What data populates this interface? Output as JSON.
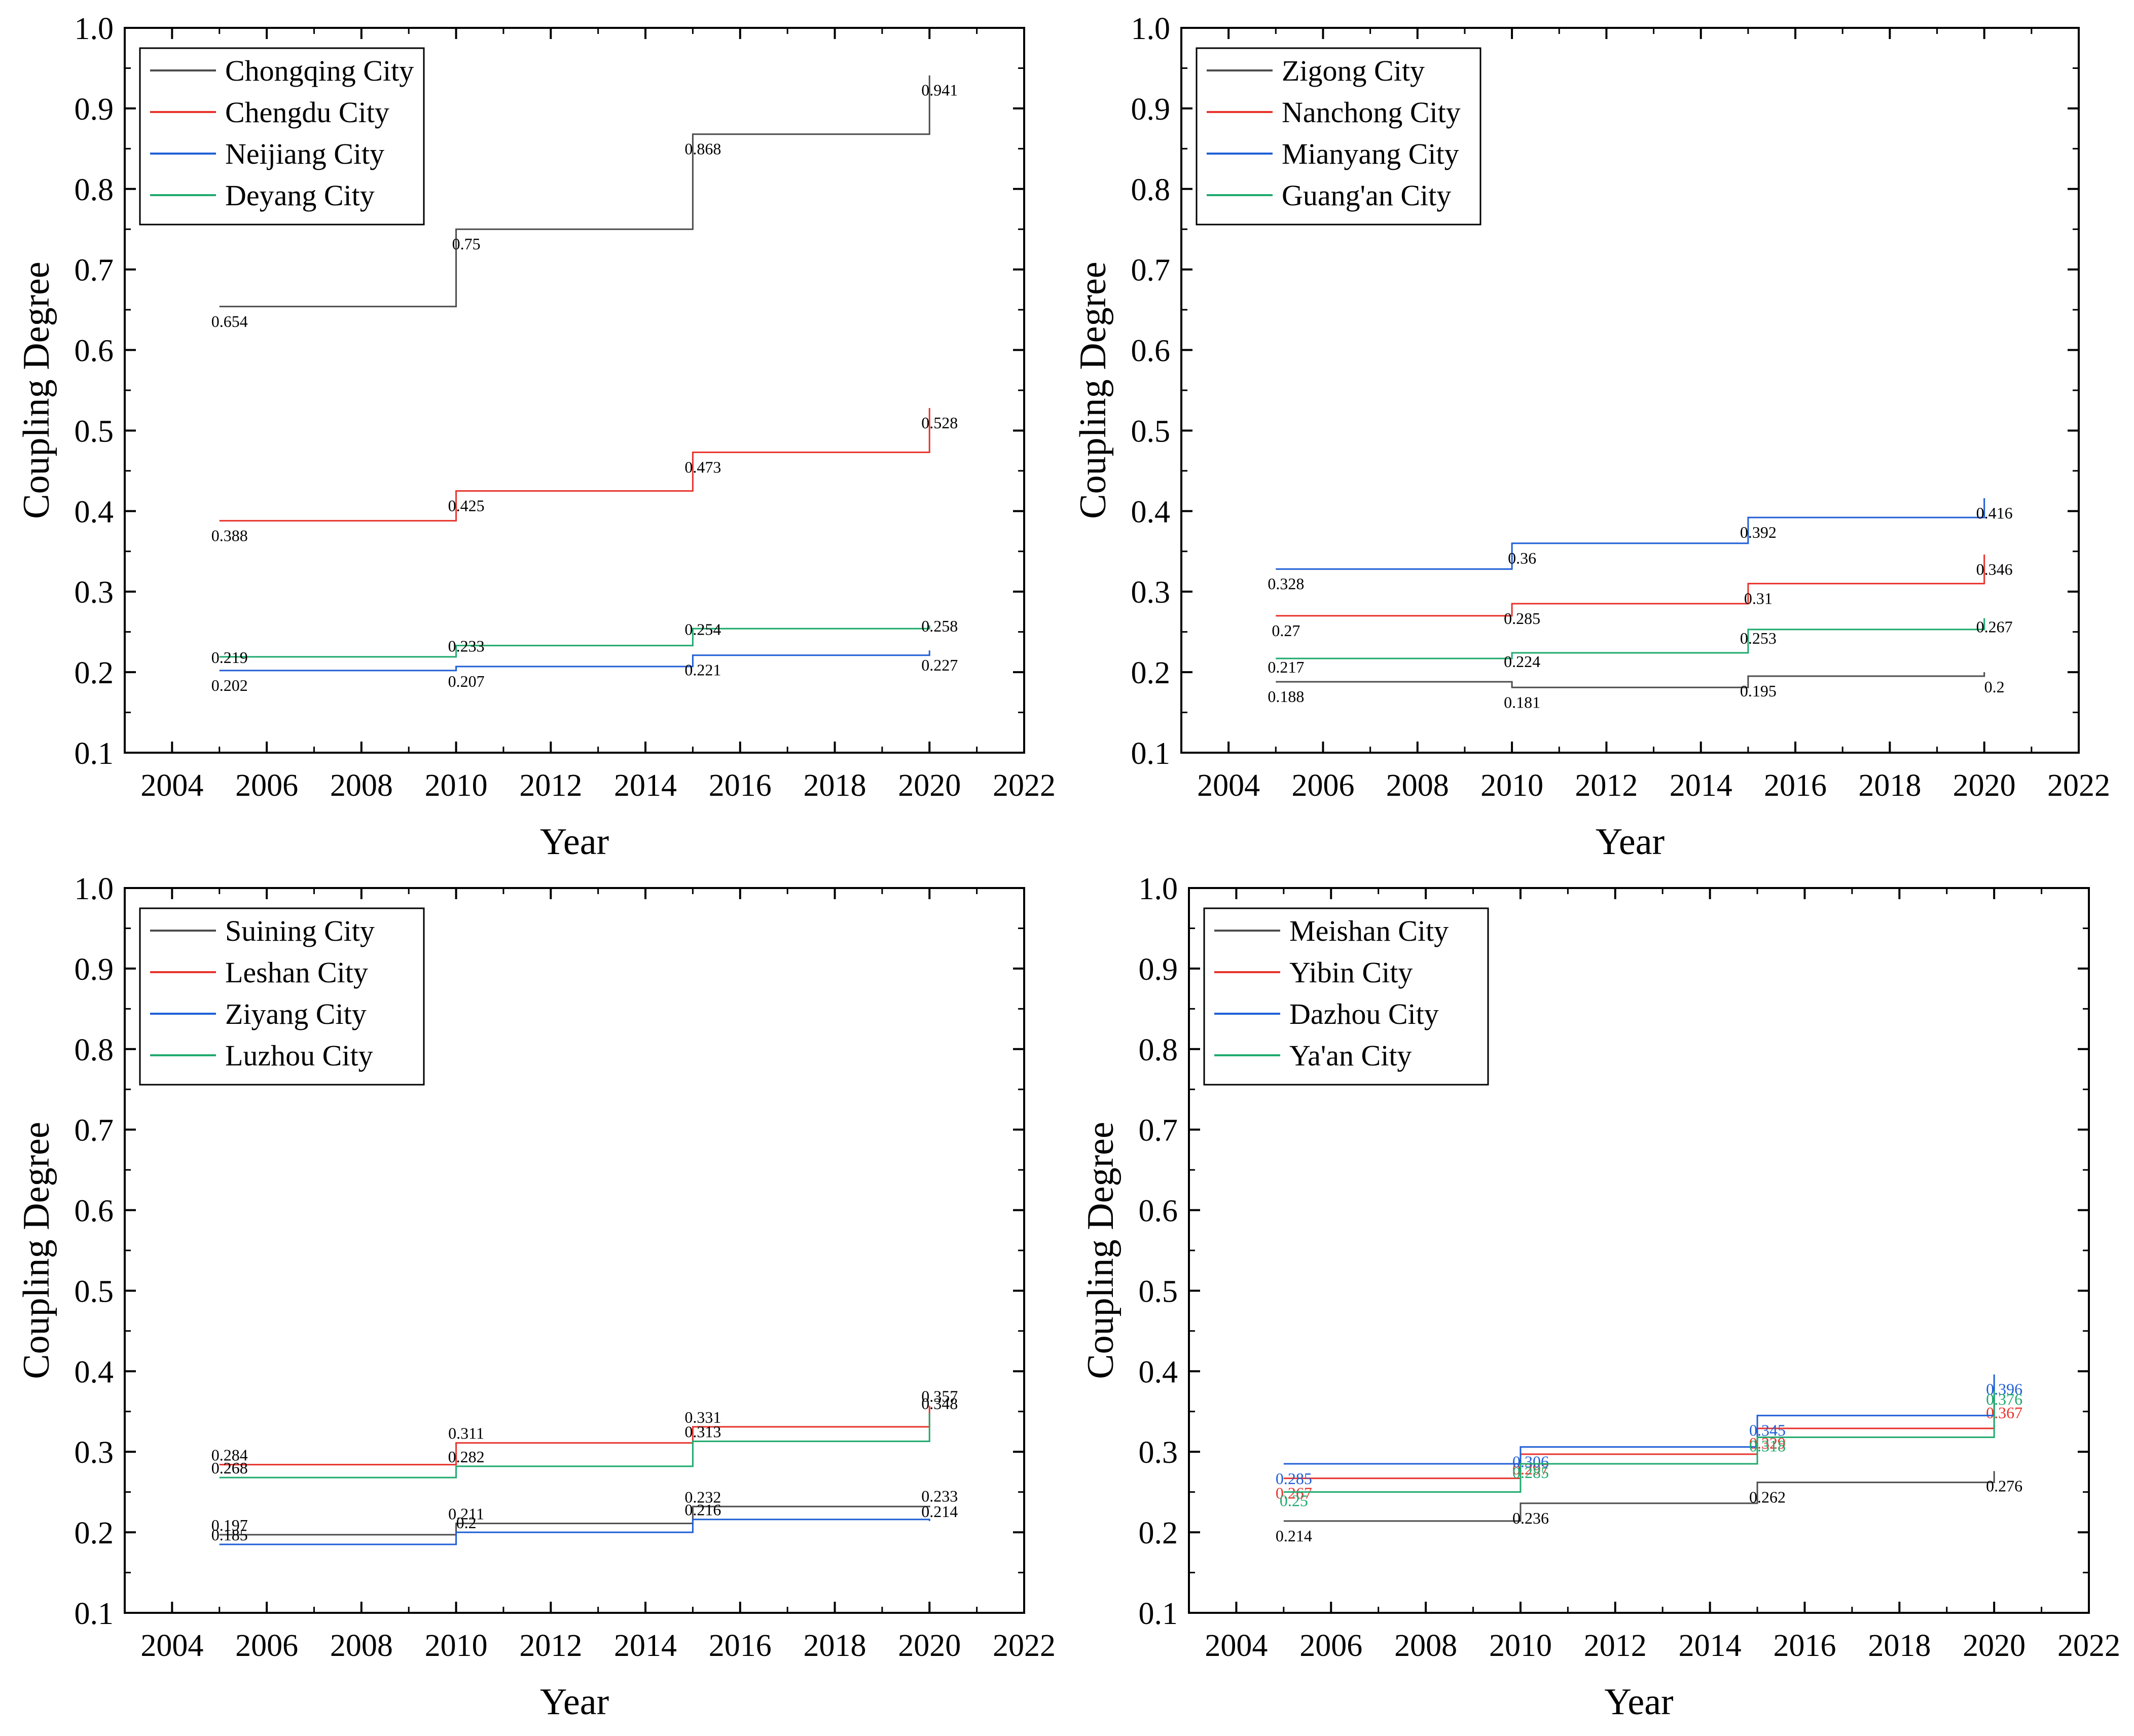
{
  "colors": {
    "black": "#4d4d4d",
    "red": "#e8332c",
    "blue": "#1f5fd6",
    "green": "#1faa6e",
    "frame": "#000000"
  },
  "chart_data": [
    {
      "type": "line",
      "step": "after",
      "xlabel": "Year",
      "ylabel": "Coupling Degree",
      "xlim": [
        2003,
        2022
      ],
      "ylim": [
        0.1,
        1.0
      ],
      "xticks": [
        "2004",
        "2006",
        "2008",
        "2010",
        "2012",
        "2014",
        "2016",
        "2018",
        "2020",
        "2022"
      ],
      "yticks": [
        "0.1",
        "0.2",
        "0.3",
        "0.4",
        "0.5",
        "0.6",
        "0.7",
        "0.8",
        "0.9",
        "1.0"
      ],
      "legend_position": "top-left",
      "x": [
        2005,
        2010,
        2015,
        2020
      ],
      "series": [
        {
          "name": "Chongqing City",
          "color": "black",
          "values": [
            0.654,
            0.75,
            0.868,
            0.941
          ],
          "labels": [
            "0.654",
            "0.75",
            "0.868",
            "0.941"
          ]
        },
        {
          "name": "Chengdu City",
          "color": "red",
          "values": [
            0.388,
            0.425,
            0.473,
            0.528
          ],
          "labels": [
            "0.388",
            "0.425",
            "0.473",
            "0.528"
          ]
        },
        {
          "name": "Neijiang City",
          "color": "blue",
          "values": [
            0.202,
            0.207,
            0.221,
            0.227
          ],
          "labels": [
            "0.202",
            "0.207",
            "0.221",
            "0.227"
          ]
        },
        {
          "name": "Deyang City",
          "color": "green",
          "values": [
            0.219,
            0.233,
            0.254,
            0.258
          ],
          "labels": [
            "0.219",
            "0.233",
            "0.254",
            "0.258"
          ]
        }
      ]
    },
    {
      "type": "line",
      "step": "after",
      "xlabel": "Year",
      "ylabel": "Coupling Degree",
      "xlim": [
        2003,
        2022
      ],
      "ylim": [
        0.1,
        1.0
      ],
      "xticks": [
        "2004",
        "2006",
        "2008",
        "2010",
        "2012",
        "2014",
        "2016",
        "2018",
        "2020",
        "2022"
      ],
      "yticks": [
        "0.1",
        "0.2",
        "0.3",
        "0.4",
        "0.5",
        "0.6",
        "0.7",
        "0.8",
        "0.9",
        "1.0"
      ],
      "legend_position": "top-left",
      "x": [
        2005,
        2010,
        2015,
        2020
      ],
      "series": [
        {
          "name": "Zigong City",
          "color": "black",
          "values": [
            0.188,
            0.181,
            0.195,
            0.2
          ],
          "labels": [
            "0.188",
            "0.181",
            "0.195",
            "0.2"
          ]
        },
        {
          "name": "Nanchong City",
          "color": "red",
          "values": [
            0.27,
            0.285,
            0.31,
            0.346
          ],
          "labels": [
            "0.27",
            "0.285",
            "0.31",
            "0.346"
          ]
        },
        {
          "name": "Mianyang City",
          "color": "blue",
          "values": [
            0.328,
            0.36,
            0.392,
            0.416
          ],
          "labels": [
            "0.328",
            "0.36",
            "0.392",
            "0.416"
          ]
        },
        {
          "name": "Guang'an City",
          "color": "green",
          "values": [
            0.217,
            0.224,
            0.253,
            0.267
          ],
          "labels": [
            "0.217",
            "0.224",
            "0.253",
            "0.267"
          ]
        }
      ]
    },
    {
      "type": "line",
      "step": "after",
      "xlabel": "Year",
      "ylabel": "Coupling Degree",
      "xlim": [
        2003,
        2022
      ],
      "ylim": [
        0.1,
        1.0
      ],
      "xticks": [
        "2004",
        "2006",
        "2008",
        "2010",
        "2012",
        "2014",
        "2016",
        "2018",
        "2020",
        "2022"
      ],
      "yticks": [
        "0.1",
        "0.2",
        "0.3",
        "0.4",
        "0.5",
        "0.6",
        "0.7",
        "0.8",
        "0.9",
        "1.0"
      ],
      "legend_position": "top-left",
      "x": [
        2005,
        2010,
        2015,
        2020
      ],
      "series": [
        {
          "name": "Suining City",
          "color": "black",
          "values": [
            0.197,
            0.211,
            0.232,
            0.233
          ],
          "labels": [
            "0.197",
            "0.211",
            "0.232",
            "0.233"
          ]
        },
        {
          "name": "Leshan City",
          "color": "red",
          "values": [
            0.284,
            0.311,
            0.331,
            0.357
          ],
          "labels": [
            "0.284",
            "0.311",
            "0.331",
            "0.357"
          ]
        },
        {
          "name": "Ziyang City",
          "color": "blue",
          "values": [
            0.185,
            0.2,
            0.216,
            0.214
          ],
          "labels": [
            "0.185",
            "0.2",
            "0.216",
            "0.214"
          ]
        },
        {
          "name": "Luzhou City",
          "color": "green",
          "values": [
            0.268,
            0.282,
            0.313,
            0.348
          ],
          "labels": [
            "0.268",
            "0.282",
            "0.313",
            "0.348"
          ]
        }
      ]
    },
    {
      "type": "line",
      "step": "after",
      "xlabel": "Year",
      "ylabel": "Coupling Degree",
      "xlim": [
        2003,
        2022
      ],
      "ylim": [
        0.1,
        1.0
      ],
      "xticks": [
        "2004",
        "2006",
        "2008",
        "2010",
        "2012",
        "2014",
        "2016",
        "2018",
        "2020",
        "2022"
      ],
      "yticks": [
        "0.1",
        "0.2",
        "0.3",
        "0.4",
        "0.5",
        "0.6",
        "0.7",
        "0.8",
        "0.9",
        "1.0"
      ],
      "legend_position": "top-left",
      "x": [
        2005,
        2010,
        2015,
        2020
      ],
      "series": [
        {
          "name": "Meishan City",
          "color": "black",
          "values": [
            0.214,
            0.236,
            0.262,
            0.276
          ],
          "labels": [
            "0.214",
            "0.236",
            "0.262",
            "0.276"
          ]
        },
        {
          "name": "Yibin City",
          "color": "red",
          "values": [
            0.267,
            0.297,
            0.329,
            0.367
          ],
          "labels": [
            "0.267",
            "0.297",
            "0.329",
            "0.367"
          ]
        },
        {
          "name": "Dazhou City",
          "color": "blue",
          "values": [
            0.285,
            0.306,
            0.345,
            0.396
          ],
          "labels": [
            "0.285",
            "0.306",
            "0.345",
            "0.396"
          ]
        },
        {
          "name": "Ya'an City",
          "color": "green",
          "values": [
            0.25,
            0.285,
            0.318,
            0.376
          ],
          "labels": [
            "0.25",
            "0.285",
            "0.318",
            "0.376"
          ]
        }
      ]
    }
  ]
}
